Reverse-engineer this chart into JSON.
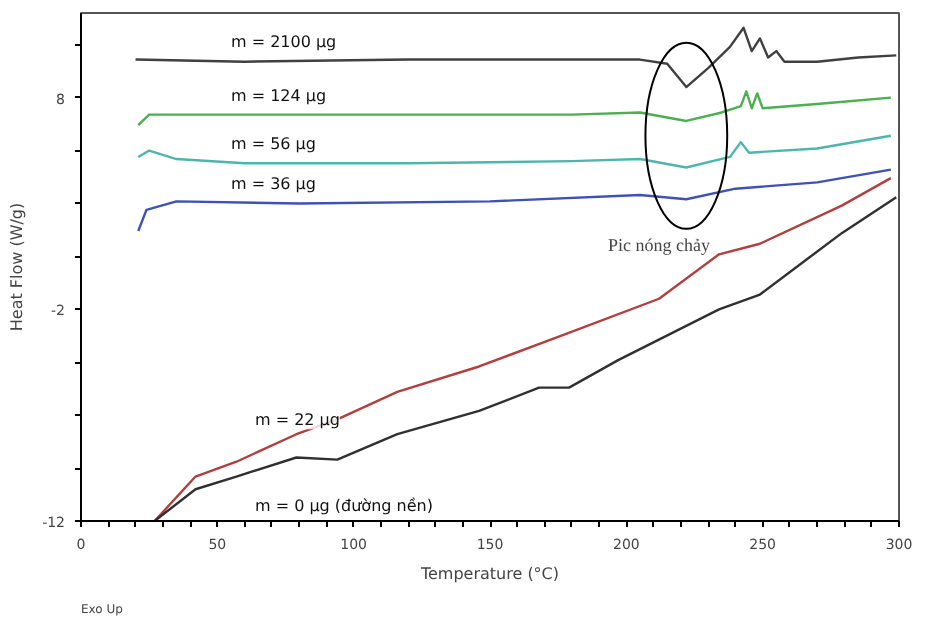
{
  "chart_data": {
    "type": "line",
    "xlabel": "Temperature (°C)",
    "ylabel": "Heat Flow (W/g)",
    "xlim": [
      0,
      300
    ],
    "ylim": [
      -12,
      12
    ],
    "xticks": [
      0,
      {
        "value": 10,
        "label": null
      },
      {
        "value": 20,
        "label": null
      },
      {
        "value": 30,
        "label": null
      },
      {
        "value": 40,
        "label": null
      },
      50,
      {
        "value": 60,
        "label": null
      },
      {
        "value": 70,
        "label": null
      },
      {
        "value": 80,
        "label": null
      },
      {
        "value": 90,
        "label": null
      },
      100,
      {
        "value": 110,
        "label": null
      },
      {
        "value": 120,
        "label": null
      },
      {
        "value": 130,
        "label": null
      },
      {
        "value": 140,
        "label": null
      },
      150,
      {
        "value": 160,
        "label": null
      },
      {
        "value": 170,
        "label": null
      },
      {
        "value": 180,
        "label": null
      },
      {
        "value": 190,
        "label": null
      },
      200,
      {
        "value": 210,
        "label": null
      },
      {
        "value": 220,
        "label": null
      },
      {
        "value": 230,
        "label": null
      },
      {
        "value": 240,
        "label": null
      },
      250,
      {
        "value": 260,
        "label": null
      },
      {
        "value": 270,
        "label": null
      },
      {
        "value": 280,
        "label": null
      },
      {
        "value": 290,
        "label": null
      },
      300
    ],
    "yticks": [
      -12,
      {
        "value": -9.5,
        "label": null
      },
      {
        "value": -7,
        "label": null
      },
      {
        "value": -4.5,
        "label": null
      },
      -2,
      {
        "value": 0.5,
        "label": null
      },
      {
        "value": 3,
        "label": null
      },
      {
        "value": 5.5,
        "label": null
      },
      8,
      {
        "value": 10.5,
        "label": null
      }
    ],
    "grid": false,
    "line_style": "solid",
    "series": [
      {
        "name": "m = 2100 µg",
        "color": "#404040",
        "x": [
          20,
          60,
          120,
          180,
          205,
          215,
          222,
          230,
          238,
          243,
          246,
          249,
          252,
          255,
          258,
          270,
          285,
          299
        ],
        "values": [
          9.8,
          9.7,
          9.8,
          9.8,
          9.8,
          9.6,
          8.5,
          9.4,
          10.4,
          11.3,
          10.2,
          10.8,
          9.9,
          10.2,
          9.7,
          9.7,
          9.9,
          10
        ]
      },
      {
        "name": "m = 124 µg",
        "color": "#4caf50",
        "x": [
          21,
          25,
          60,
          120,
          180,
          205,
          222,
          235,
          242,
          244,
          246,
          248,
          250,
          270,
          297
        ],
        "values": [
          6.7,
          7.2,
          7.2,
          7.2,
          7.2,
          7.3,
          6.9,
          7.3,
          7.6,
          8.3,
          7.5,
          8.2,
          7.5,
          7.7,
          8
        ]
      },
      {
        "name": "m = 56 µg",
        "color": "#4db6ac",
        "x": [
          21,
          25,
          35,
          60,
          120,
          180,
          205,
          222,
          238,
          242,
          245,
          270,
          297
        ],
        "values": [
          5.2,
          5.5,
          5.1,
          4.9,
          4.9,
          5,
          5.1,
          4.7,
          5.2,
          5.9,
          5.4,
          5.6,
          6.2
        ]
      },
      {
        "name": "m = 36 µg",
        "color": "#3f51b5",
        "x": [
          21,
          24,
          35,
          80,
          150,
          205,
          222,
          240,
          270,
          297
        ],
        "values": [
          1.7,
          2.7,
          3.1,
          3,
          3.1,
          3.4,
          3.2,
          3.7,
          4,
          4.6
        ]
      },
      {
        "name": "m = 22 µg",
        "color": "#b04040",
        "x": [
          27,
          42,
          57,
          79,
          94,
          116,
          146,
          175,
          212,
          234,
          249,
          279,
          297
        ],
        "values": [
          -12,
          -9.9,
          -9.2,
          -7.9,
          -7.2,
          -5.9,
          -4.7,
          -3.3,
          -1.5,
          0.6,
          1.1,
          2.9,
          4.2
        ]
      },
      {
        "name": "m = 0 µg (đường nền)",
        "color": "#303030",
        "x": [
          27,
          42,
          57,
          79,
          94,
          116,
          146,
          168,
          179,
          197,
          234,
          249,
          279,
          299
        ],
        "values": [
          -12,
          -10.5,
          -9.9,
          -9,
          -9.1,
          -7.9,
          -6.8,
          -5.7,
          -5.7,
          -4.4,
          -2,
          -1.3,
          1.6,
          3.3
        ]
      }
    ],
    "annotations": [
      "Pic nóng chảy",
      "Exo Up"
    ]
  }
}
